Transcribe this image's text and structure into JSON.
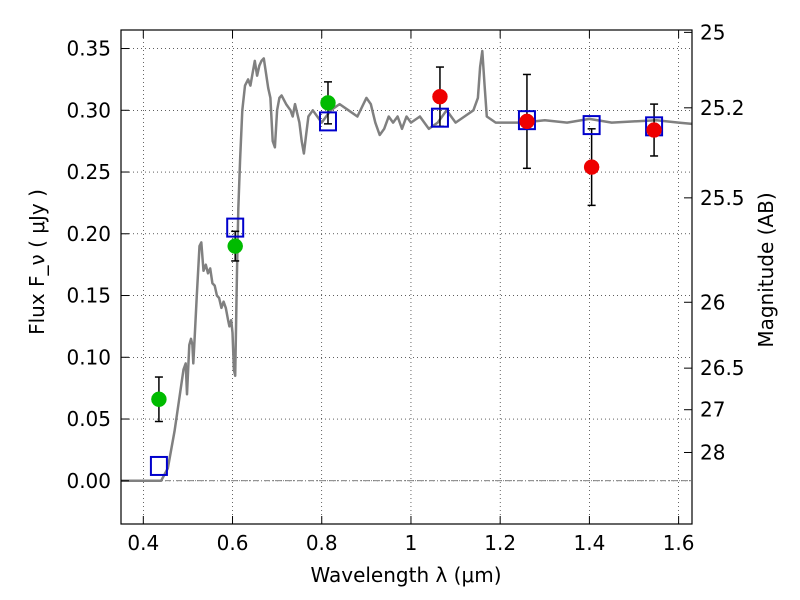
{
  "chart_data": {
    "type": "scatter",
    "xlabel": "Wavelength  λ (μm)",
    "ylabel": "Flux  F_ν ( μJy )",
    "ylabel2": "Magnitude (AB)",
    "xlim": [
      0.35,
      1.63
    ],
    "ylim": [
      -0.035,
      0.365
    ],
    "grid": true,
    "x_ticks": [
      {
        "value": 0.4,
        "label": "0.4"
      },
      {
        "value": 0.6,
        "label": "0.6"
      },
      {
        "value": 0.8,
        "label": "0.8"
      },
      {
        "value": 1.0,
        "label": "1"
      },
      {
        "value": 1.2,
        "label": "1.2"
      },
      {
        "value": 1.4,
        "label": "1.4"
      },
      {
        "value": 1.6,
        "label": "1.6"
      }
    ],
    "y_ticks": [
      {
        "value": 0.0,
        "label": "0.00"
      },
      {
        "value": 0.05,
        "label": "0.05"
      },
      {
        "value": 0.1,
        "label": "0.10"
      },
      {
        "value": 0.15,
        "label": "0.15"
      },
      {
        "value": 0.2,
        "label": "0.20"
      },
      {
        "value": 0.25,
        "label": "0.25"
      },
      {
        "value": 0.3,
        "label": "0.30"
      },
      {
        "value": 0.35,
        "label": "0.35"
      }
    ],
    "mag_ticks": [
      {
        "value": 25,
        "label": "25"
      },
      {
        "value": 25.2,
        "label": "25.2"
      },
      {
        "value": 25.5,
        "label": "25.5"
      },
      {
        "value": 26,
        "label": "26"
      },
      {
        "value": 26.5,
        "label": "26.5"
      },
      {
        "value": 27,
        "label": "27"
      },
      {
        "value": 28,
        "label": "28"
      }
    ],
    "model_spectrum": {
      "color": "#808080",
      "points": [
        [
          0.35,
          0.0
        ],
        [
          0.44,
          0.0
        ],
        [
          0.455,
          0.01
        ],
        [
          0.47,
          0.04
        ],
        [
          0.48,
          0.065
        ],
        [
          0.49,
          0.09
        ],
        [
          0.495,
          0.095
        ],
        [
          0.498,
          0.07
        ],
        [
          0.503,
          0.11
        ],
        [
          0.507,
          0.115
        ],
        [
          0.51,
          0.11
        ],
        [
          0.512,
          0.095
        ],
        [
          0.515,
          0.115
        ],
        [
          0.52,
          0.15
        ],
        [
          0.526,
          0.19
        ],
        [
          0.53,
          0.193
        ],
        [
          0.535,
          0.17
        ],
        [
          0.54,
          0.175
        ],
        [
          0.545,
          0.168
        ],
        [
          0.55,
          0.172
        ],
        [
          0.555,
          0.16
        ],
        [
          0.56,
          0.158
        ],
        [
          0.565,
          0.15
        ],
        [
          0.57,
          0.148
        ],
        [
          0.575,
          0.14
        ],
        [
          0.58,
          0.145
        ],
        [
          0.585,
          0.14
        ],
        [
          0.59,
          0.13
        ],
        [
          0.593,
          0.125
        ],
        [
          0.597,
          0.13
        ],
        [
          0.6,
          0.12
        ],
        [
          0.603,
          0.09
        ],
        [
          0.606,
          0.085
        ],
        [
          0.61,
          0.17
        ],
        [
          0.613,
          0.22
        ],
        [
          0.617,
          0.26
        ],
        [
          0.622,
          0.3
        ],
        [
          0.628,
          0.32
        ],
        [
          0.635,
          0.325
        ],
        [
          0.64,
          0.32
        ],
        [
          0.645,
          0.33
        ],
        [
          0.65,
          0.34
        ],
        [
          0.655,
          0.328
        ],
        [
          0.66,
          0.336
        ],
        [
          0.665,
          0.34
        ],
        [
          0.67,
          0.342
        ],
        [
          0.675,
          0.33
        ],
        [
          0.68,
          0.318
        ],
        [
          0.685,
          0.31
        ],
        [
          0.69,
          0.275
        ],
        [
          0.695,
          0.27
        ],
        [
          0.7,
          0.3
        ],
        [
          0.705,
          0.31
        ],
        [
          0.71,
          0.312
        ],
        [
          0.72,
          0.305
        ],
        [
          0.73,
          0.3
        ],
        [
          0.735,
          0.295
        ],
        [
          0.74,
          0.305
        ],
        [
          0.75,
          0.29
        ],
        [
          0.755,
          0.275
        ],
        [
          0.76,
          0.265
        ],
        [
          0.765,
          0.28
        ],
        [
          0.77,
          0.295
        ],
        [
          0.78,
          0.3
        ],
        [
          0.8,
          0.29
        ],
        [
          0.82,
          0.3
        ],
        [
          0.84,
          0.305
        ],
        [
          0.86,
          0.3
        ],
        [
          0.88,
          0.295
        ],
        [
          0.9,
          0.31
        ],
        [
          0.91,
          0.305
        ],
        [
          0.92,
          0.29
        ],
        [
          0.93,
          0.28
        ],
        [
          0.94,
          0.285
        ],
        [
          0.95,
          0.295
        ],
        [
          0.96,
          0.29
        ],
        [
          0.97,
          0.295
        ],
        [
          0.98,
          0.285
        ],
        [
          0.99,
          0.295
        ],
        [
          1.0,
          0.29
        ],
        [
          1.02,
          0.295
        ],
        [
          1.04,
          0.285
        ],
        [
          1.06,
          0.29
        ],
        [
          1.08,
          0.3
        ],
        [
          1.1,
          0.29
        ],
        [
          1.12,
          0.295
        ],
        [
          1.14,
          0.3
        ],
        [
          1.15,
          0.31
        ],
        [
          1.155,
          0.335
        ],
        [
          1.16,
          0.348
        ],
        [
          1.165,
          0.32
        ],
        [
          1.17,
          0.295
        ],
        [
          1.19,
          0.29
        ],
        [
          1.21,
          0.29
        ],
        [
          1.25,
          0.29
        ],
        [
          1.3,
          0.292
        ],
        [
          1.35,
          0.29
        ],
        [
          1.4,
          0.293
        ],
        [
          1.45,
          0.29
        ],
        [
          1.5,
          0.291
        ],
        [
          1.55,
          0.292
        ],
        [
          1.6,
          0.29
        ],
        [
          1.63,
          0.289
        ]
      ]
    },
    "series": [
      {
        "marker": "circle",
        "color": "#00bb00",
        "points": [
          {
            "x": 0.435,
            "y": 0.066,
            "yerr": 0.018
          },
          {
            "x": 0.606,
            "y": 0.19,
            "yerr": 0.012
          },
          {
            "x": 0.814,
            "y": 0.306,
            "yerr": 0.017
          }
        ]
      },
      {
        "marker": "circle",
        "color": "#ee0000",
        "points": [
          {
            "x": 1.065,
            "y": 0.311,
            "yerr": 0.024
          },
          {
            "x": 1.26,
            "y": 0.291,
            "yerr": 0.038
          },
          {
            "x": 1.405,
            "y": 0.254,
            "yerr": 0.031
          },
          {
            "x": 1.545,
            "y": 0.284,
            "yerr": 0.021
          }
        ]
      },
      {
        "marker": "square",
        "color": "#0000cc",
        "points": [
          {
            "x": 0.435,
            "y": 0.012
          },
          {
            "x": 0.606,
            "y": 0.205
          },
          {
            "x": 0.814,
            "y": 0.291
          },
          {
            "x": 1.065,
            "y": 0.294
          },
          {
            "x": 1.26,
            "y": 0.292
          },
          {
            "x": 1.405,
            "y": 0.288
          },
          {
            "x": 1.545,
            "y": 0.287
          }
        ]
      }
    ]
  }
}
